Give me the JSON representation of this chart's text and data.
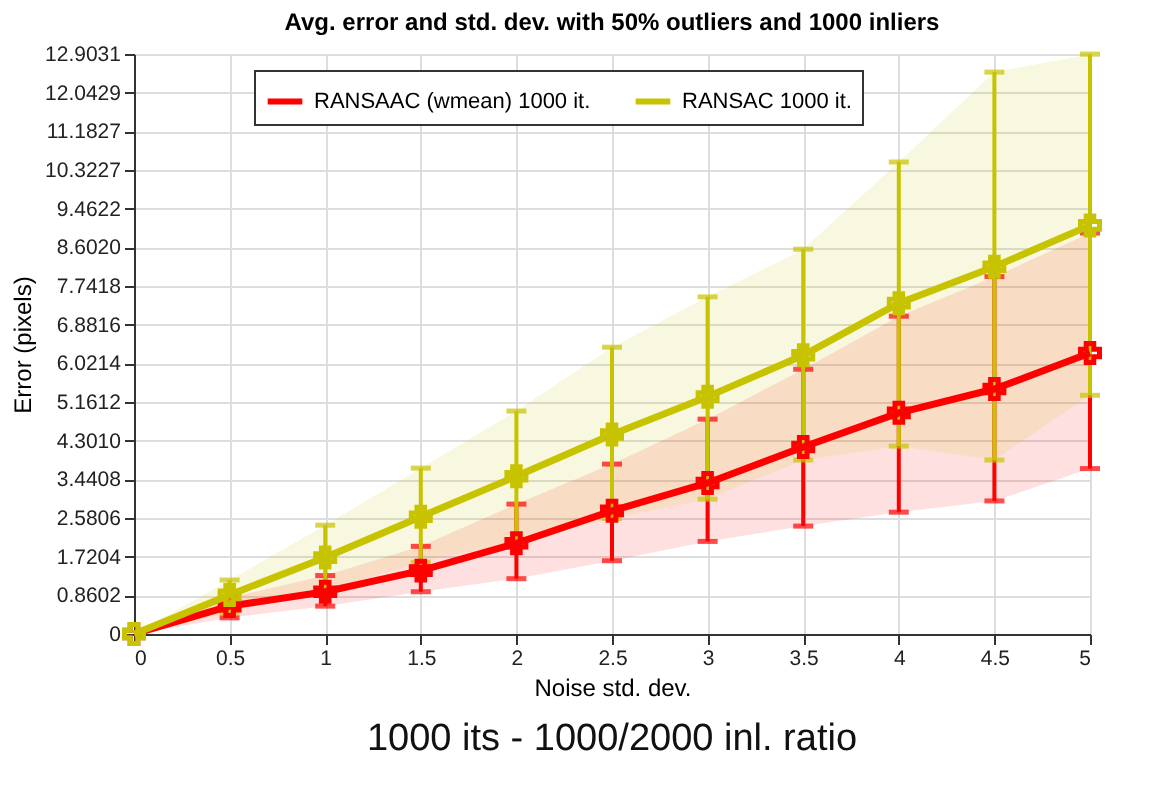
{
  "chart_data": {
    "type": "line",
    "title": "Avg. error and std. dev. with 50% outliers and 1000 inliers",
    "xlabel": "Noise std. dev.",
    "ylabel": "Error (pixels)",
    "x": [
      0,
      0.5,
      1,
      1.5,
      2,
      2.5,
      3,
      3.5,
      4,
      4.5,
      5
    ],
    "series": [
      {
        "name": "RANSAAC (wmean) 1000 it.",
        "color": "#ff0000",
        "values": [
          0,
          0.62,
          0.94,
          1.41,
          2.02,
          2.74,
          3.36,
          4.16,
          4.92,
          5.45,
          6.25
        ],
        "errors": [
          null,
          [
            0.36,
            0.81
          ],
          [
            0.62,
            1.3
          ],
          [
            0.94,
            1.95
          ],
          [
            1.23,
            2.89
          ],
          [
            1.63,
            3.78
          ],
          [
            2.06,
            4.78
          ],
          [
            2.4,
            5.89
          ],
          [
            2.71,
            7.07
          ],
          [
            2.96,
            7.95
          ],
          [
            3.68,
            8.92
          ]
        ],
        "lower": [
          0,
          0.36,
          0.62,
          0.94,
          1.23,
          1.63,
          2.06,
          2.4,
          2.71,
          2.96,
          3.68
        ],
        "upper": [
          0,
          0.81,
          1.3,
          1.95,
          2.89,
          3.78,
          4.78,
          5.89,
          7.07,
          7.95,
          8.92
        ]
      },
      {
        "name": "RANSAC 1000 it.",
        "color": "#c8c300",
        "values": [
          0,
          0.87,
          1.7,
          2.61,
          3.51,
          4.44,
          5.28,
          6.2,
          7.36,
          8.17,
          9.09
        ],
        "errors": [
          null,
          [
            0.48,
            1.2
          ],
          [
            0.98,
            2.42
          ],
          [
            1.59,
            3.69
          ],
          [
            2.06,
            4.96
          ],
          [
            2.57,
            6.38
          ],
          [
            3.0,
            7.5
          ],
          [
            3.87,
            8.56
          ],
          [
            4.18,
            10.5
          ],
          [
            3.87,
            12.5
          ],
          [
            5.31,
            12.9
          ]
        ],
        "lower": [
          0,
          0.48,
          0.98,
          1.59,
          2.06,
          2.57,
          3.0,
          3.87,
          4.18,
          3.87,
          5.31
        ],
        "upper": [
          0,
          1.2,
          2.42,
          3.69,
          4.96,
          6.38,
          7.5,
          8.56,
          10.5,
          12.5,
          12.9
        ]
      }
    ],
    "xlim": [
      0,
      5
    ],
    "xticks": [
      0,
      0.5,
      1,
      1.5,
      2,
      2.5,
      3,
      3.5,
      4,
      4.5,
      5
    ],
    "ylim": [
      0,
      12.9031
    ],
    "yticks": [
      0,
      0.8602,
      1.7204,
      2.5806,
      3.4408,
      {
        "value": 4.301,
        "label": "4.3010"
      },
      5.1612,
      6.0214,
      6.8816,
      7.7418,
      {
        "value": 8.602,
        "label": "8.6020"
      },
      9.4622,
      10.3227,
      11.1827,
      12.0429,
      12.9031
    ],
    "grid": true,
    "legend": "top",
    "marker": "cross",
    "line_style": "solid",
    "annotations": [
      "1000 its - 1000/2000 inl. ratio"
    ]
  }
}
